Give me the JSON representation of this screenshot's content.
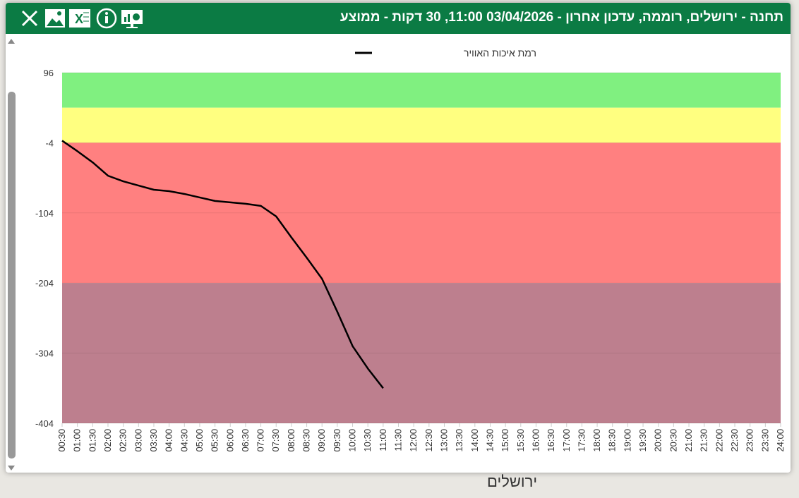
{
  "header": {
    "title": "תחנה - ירושלים, רוממה, עדכון אחרון - 03/04/2026 11:00, 30 דקות - ממוצע"
  },
  "map_label": "ירושלים",
  "chart_data": {
    "type": "line",
    "categories": [
      "00:30",
      "01:00",
      "01:30",
      "02:00",
      "02:30",
      "03:00",
      "03:30",
      "04:00",
      "04:30",
      "05:00",
      "05:30",
      "06:00",
      "06:30",
      "07:00",
      "07:30",
      "08:00",
      "08:30",
      "09:00",
      "09:30",
      "10:00",
      "10:30",
      "11:00",
      "11:30",
      "12:00",
      "12:30",
      "13:00",
      "13:30",
      "14:00",
      "14:30",
      "15:00",
      "15:30",
      "16:00",
      "16:30",
      "17:00",
      "17:30",
      "18:00",
      "18:30",
      "19:00",
      "19:30",
      "20:00",
      "20:30",
      "21:00",
      "21:30",
      "22:00",
      "22:30",
      "23:00",
      "23:30",
      "24:00"
    ],
    "series": [
      {
        "name": "רמת איכות האוויר",
        "color": "#000000",
        "values": [
          -1,
          -16,
          -32,
          -51,
          -59,
          -65,
          -71,
          -73,
          -77,
          -82,
          -87,
          -89,
          -91,
          -94,
          -109,
          -139,
          -168,
          -198,
          -245,
          -294,
          -326,
          -354,
          null,
          null,
          null,
          null,
          null,
          null,
          null,
          null,
          null,
          null,
          null,
          null,
          null,
          null,
          null,
          null,
          null,
          null,
          null,
          null,
          null,
          null,
          null,
          null,
          null,
          null
        ]
      }
    ],
    "ylim": [
      -404,
      96
    ],
    "yticks": [
      -404,
      -304,
      -204,
      -104,
      -4,
      96
    ],
    "grid": true,
    "bands": [
      {
        "from": 96,
        "to": 46,
        "color": "#80f080"
      },
      {
        "from": 46,
        "to": -4,
        "color": "#ffff80"
      },
      {
        "from": -4,
        "to": -204,
        "color": "#ff8080"
      },
      {
        "from": -204,
        "to": -404,
        "color": "#bd7f8e"
      }
    ]
  }
}
